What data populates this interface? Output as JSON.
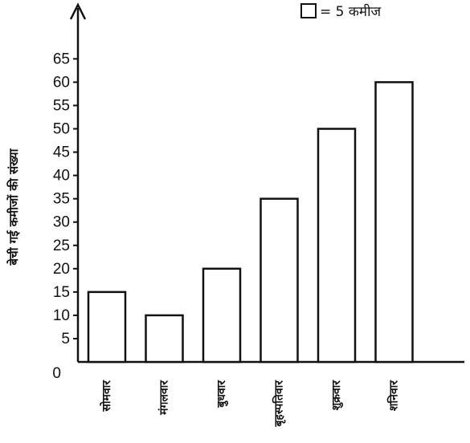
{
  "legend": {
    "text": "= 5 कमीज"
  },
  "chart_data": {
    "type": "bar",
    "categories": [
      "सोमवार",
      "मंगलवार",
      "बुधवार",
      "बृहस्पतिवार",
      "शुक्रवार",
      "शनिवार"
    ],
    "values": [
      15,
      10,
      20,
      35,
      50,
      60
    ],
    "ylabel": "बेची गई कमीजों की संख्या",
    "xlabel": "",
    "yticks": [
      0,
      5,
      10,
      15,
      20,
      25,
      30,
      35,
      40,
      45,
      50,
      55,
      60,
      65
    ],
    "ylim": [
      0,
      65
    ],
    "grid": false,
    "legend_position": "top-right"
  }
}
